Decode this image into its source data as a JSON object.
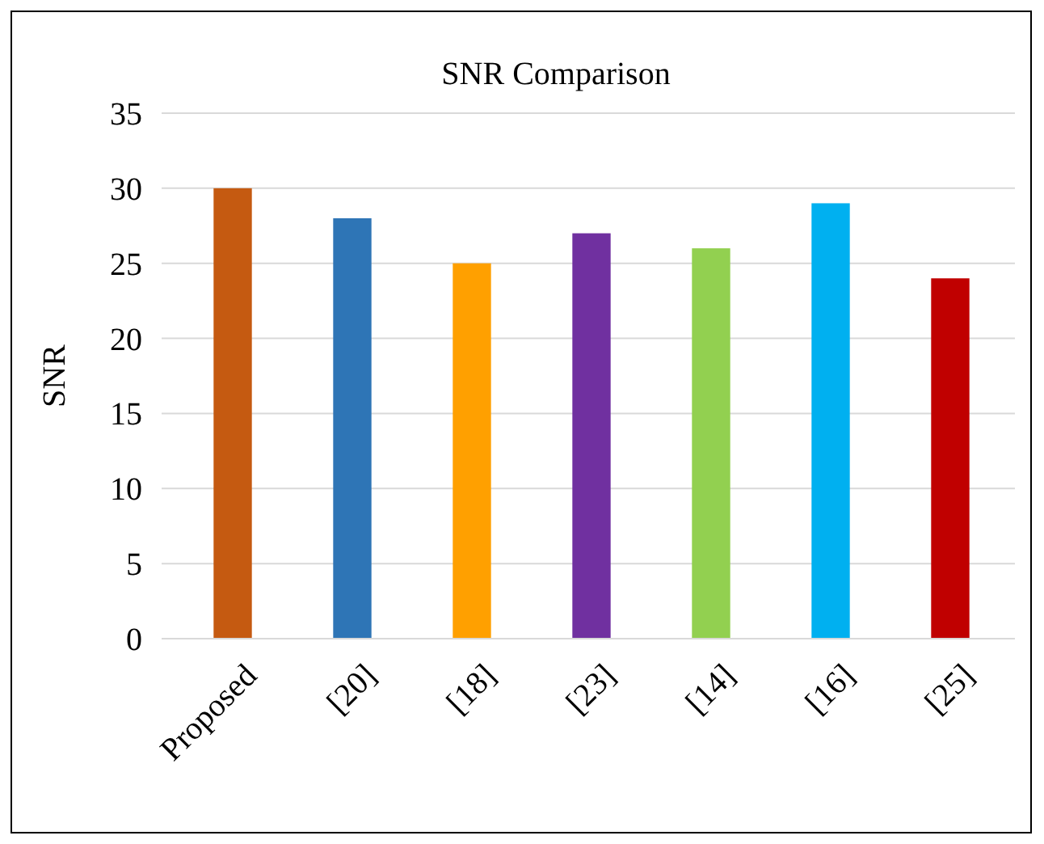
{
  "chart_data": {
    "type": "bar",
    "title": "SNR Comparison",
    "ylabel": "SNR",
    "categories": [
      "Proposed",
      "[20]",
      "[18]",
      "[23]",
      "[14]",
      "[16]",
      "[25]"
    ],
    "values": [
      30,
      28,
      25,
      27,
      26,
      29,
      24
    ],
    "colors": [
      "#c55a11",
      "#2e75b6",
      "#ffa000",
      "#7030a0",
      "#92d050",
      "#00b0f0",
      "#c00000"
    ],
    "ylim": [
      0,
      35
    ],
    "yticks": [
      0,
      5,
      10,
      15,
      20,
      25,
      30,
      35
    ],
    "grid": "y"
  }
}
